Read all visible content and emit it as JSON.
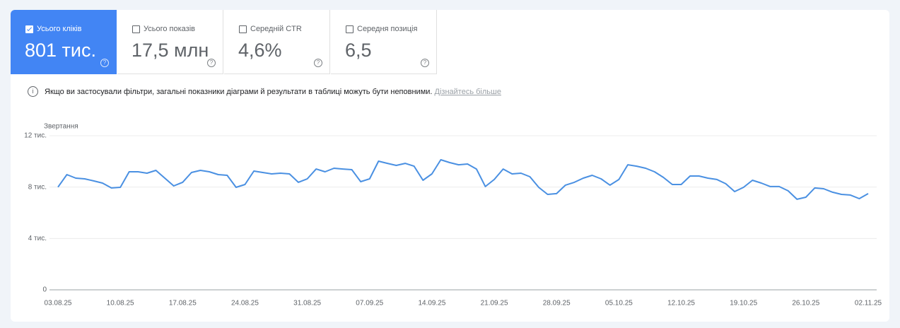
{
  "metrics": [
    {
      "label": "Усього кліків",
      "value": "801 тис.",
      "selected": true
    },
    {
      "label": "Усього показів",
      "value": "17,5 млн",
      "selected": false
    },
    {
      "label": "Середній CTR",
      "value": "4,6%",
      "selected": false
    },
    {
      "label": "Середня позиція",
      "value": "6,5",
      "selected": false
    }
  ],
  "notice": {
    "text": "Якщо ви застосували фільтри, загальні показники діаграми й результати в таблиці можуть бути неповними.",
    "link": "Дізнайтесь більше"
  },
  "chart_data": {
    "type": "line",
    "y_label": "Звертання",
    "color": "#4a90e2",
    "x": [
      "03.08.25",
      "04.08.25",
      "05.08.25",
      "06.08.25",
      "07.08.25",
      "08.08.25",
      "09.08.25",
      "10.08.25",
      "11.08.25",
      "12.08.25",
      "13.08.25",
      "14.08.25",
      "15.08.25",
      "16.08.25",
      "17.08.25",
      "18.08.25",
      "19.08.25",
      "20.08.25",
      "21.08.25",
      "22.08.25",
      "23.08.25",
      "24.08.25",
      "25.08.25",
      "26.08.25",
      "27.08.25",
      "28.08.25",
      "29.08.25",
      "30.08.25",
      "31.08.25",
      "01.09.25",
      "02.09.25",
      "03.09.25",
      "04.09.25",
      "05.09.25",
      "06.09.25",
      "07.09.25",
      "08.09.25",
      "09.09.25",
      "10.09.25",
      "11.09.25",
      "12.09.25",
      "13.09.25",
      "14.09.25",
      "15.09.25",
      "16.09.25",
      "17.09.25",
      "18.09.25",
      "19.09.25",
      "20.09.25",
      "21.09.25",
      "22.09.25",
      "23.09.25",
      "24.09.25",
      "25.09.25",
      "26.09.25",
      "27.09.25",
      "28.09.25",
      "29.09.25",
      "30.09.25",
      "01.10.25",
      "02.10.25",
      "03.10.25",
      "04.10.25",
      "05.10.25",
      "06.10.25",
      "07.10.25",
      "08.10.25",
      "09.10.25",
      "10.10.25",
      "11.10.25",
      "12.10.25",
      "13.10.25",
      "14.10.25",
      "15.10.25",
      "16.10.25",
      "17.10.25",
      "18.10.25",
      "19.10.25",
      "20.10.25",
      "21.10.25",
      "22.10.25",
      "23.10.25",
      "24.10.25",
      "25.10.25",
      "26.10.25",
      "27.10.25",
      "28.10.25",
      "29.10.25",
      "30.10.25",
      "31.10.25",
      "01.11.25",
      "02.11.25"
    ],
    "values": [
      8000,
      8970,
      8700,
      8640,
      8480,
      8310,
      7930,
      7980,
      9190,
      9190,
      9080,
      9300,
      8700,
      8090,
      8370,
      9140,
      9300,
      9190,
      8970,
      8920,
      7980,
      8200,
      9250,
      9140,
      9030,
      9080,
      9030,
      8370,
      8640,
      9410,
      9190,
      9470,
      9410,
      9360,
      8420,
      8640,
      10020,
      9850,
      9690,
      9850,
      9630,
      8530,
      9030,
      10130,
      9910,
      9740,
      9800,
      9410,
      8040,
      8590,
      9410,
      9030,
      9080,
      8810,
      7980,
      7430,
      7490,
      8150,
      8370,
      8700,
      8920,
      8640,
      8150,
      8590,
      9740,
      9630,
      9470,
      9190,
      8750,
      8200,
      8200,
      8860,
      8860,
      8700,
      8590,
      8260,
      7650,
      7980,
      8530,
      8310,
      8040,
      8040,
      7710,
      7050,
      7210,
      7930,
      7870,
      7600,
      7430,
      7380,
      7100,
      7490
    ],
    "ylim": [
      0,
      12000
    ],
    "yticks": [
      0,
      {
        "value": 4000,
        "label": "4 тис."
      },
      {
        "value": 8000,
        "label": "8 тис."
      },
      {
        "value": 12000,
        "label": "12 тис."
      }
    ],
    "xticks": [
      "03.08.25",
      "10.08.25",
      "17.08.25",
      "24.08.25",
      "31.08.25",
      "07.09.25",
      "14.09.25",
      "21.09.25",
      "28.09.25",
      "05.10.25",
      "12.10.25",
      "19.10.25",
      "26.10.25",
      "02.11.25"
    ],
    "grid": true
  }
}
